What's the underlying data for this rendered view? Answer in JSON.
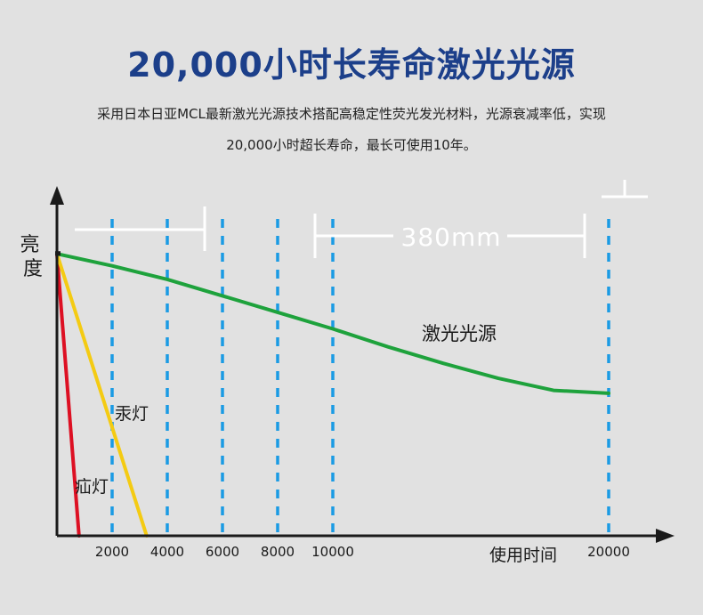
{
  "headline": "20,000小时长寿命激光光源",
  "description": {
    "line1": "采用日本日亚MCL最新激光光源技术搭配高稳定性荧光发光材料，光源衰减率低，实现",
    "line2": "20,000小时超长寿命，最长可使用10年。"
  },
  "chart_data": {
    "type": "line",
    "ylabel": "亮度",
    "xlabel": "使用时间",
    "x_ticks": [
      2000,
      4000,
      6000,
      8000,
      10000,
      20000
    ],
    "x_tick_labels": [
      "2000",
      "4000",
      "6000",
      "8000",
      "10000",
      "20000"
    ],
    "dimension_annotation": "380mm",
    "grid": "dashed vertical lines at each x tick and one at 0",
    "series": [
      {
        "name": "激光光源",
        "color": "#1ea23c",
        "points": [
          [
            0,
            94
          ],
          [
            2000,
            90
          ],
          [
            4000,
            85.5
          ],
          [
            6000,
            80
          ],
          [
            8000,
            74.5
          ],
          [
            10000,
            69
          ],
          [
            12000,
            63
          ],
          [
            14000,
            57.5
          ],
          [
            16000,
            52.5
          ],
          [
            18000,
            48.5
          ],
          [
            20000,
            47.5
          ]
        ]
      },
      {
        "name": "汞灯",
        "color": "#f4cb13",
        "points": [
          [
            0,
            94
          ],
          [
            3250,
            0
          ]
        ]
      },
      {
        "name": "疝灯",
        "color": "#dd1023",
        "points": [
          [
            0,
            94
          ],
          [
            800,
            0
          ]
        ]
      }
    ]
  }
}
